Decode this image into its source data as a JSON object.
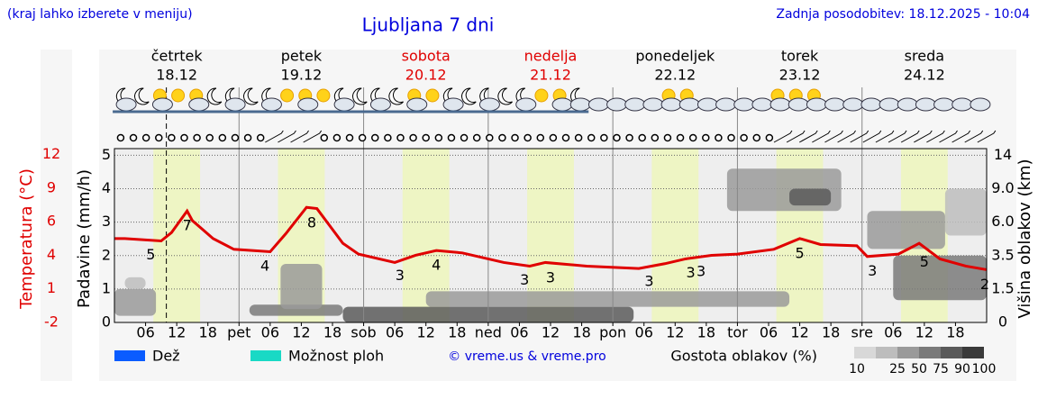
{
  "header": {
    "note": "(kraj lahko izberete v meniju)",
    "updated": "Zadnja posodobitev: 18.12.2025 - 10:04"
  },
  "chart_data": {
    "type": "meteogram",
    "title": "Ljubljana 7 dni",
    "days": [
      {
        "name": "četrtek",
        "date": "18.12",
        "weekend": false
      },
      {
        "name": "petek",
        "date": "19.12",
        "weekend": false
      },
      {
        "name": "sobota",
        "date": "20.12",
        "weekend": true
      },
      {
        "name": "nedelja",
        "date": "21.12",
        "weekend": true
      },
      {
        "name": "ponedeljek",
        "date": "22.12",
        "weekend": false
      },
      {
        "name": "torek",
        "date": "23.12",
        "weekend": false
      },
      {
        "name": "sreda",
        "date": "24.12",
        "weekend": false
      }
    ],
    "weekend_color": "#e00000",
    "daylight_hours": [
      7.5,
      16.5
    ],
    "now_hour": 10,
    "xlim": [
      0,
      168
    ],
    "xticks": [
      {
        "value": 6,
        "label": "06"
      },
      12,
      18,
      {
        "value": 24,
        "label": "pet"
      },
      {
        "value": 30,
        "label": "06"
      },
      {
        "value": 36,
        "label": "12"
      },
      {
        "value": 42,
        "label": "18"
      },
      {
        "value": 48,
        "label": "sob"
      },
      {
        "value": 54,
        "label": "06"
      },
      {
        "value": 60,
        "label": "12"
      },
      {
        "value": 66,
        "label": "18"
      },
      {
        "value": 72,
        "label": "ned"
      },
      {
        "value": 78,
        "label": "06"
      },
      {
        "value": 84,
        "label": "12"
      },
      {
        "value": 90,
        "label": "18"
      },
      {
        "value": 96,
        "label": "pon"
      },
      {
        "value": 102,
        "label": "06"
      },
      {
        "value": 108,
        "label": "12"
      },
      {
        "value": 114,
        "label": "18"
      },
      {
        "value": 120,
        "label": "tor"
      },
      {
        "value": 126,
        "label": "06"
      },
      {
        "value": 132,
        "label": "12"
      },
      {
        "value": 138,
        "label": "18"
      },
      {
        "value": 144,
        "label": "sre"
      },
      {
        "value": 150,
        "label": "06"
      },
      {
        "value": 156,
        "label": "12"
      },
      {
        "value": 162,
        "label": "18"
      }
    ],
    "ylabel": "Padavine (mm/h)",
    "ylim": [
      0,
      5.2
    ],
    "yticks": [
      0,
      1,
      2,
      3,
      4,
      5
    ],
    "temperature": {
      "label": "Temperatura (°C)",
      "color": "#e00000",
      "lim": [
        -2,
        12.5
      ],
      "ticks": [
        -2,
        {
          "value": 0.8,
          "label": "1"
        },
        {
          "value": 3.6,
          "label": "4"
        },
        {
          "value": 6.4,
          "label": "6"
        },
        {
          "value": 9.2,
          "label": "9"
        },
        12
      ],
      "x": [
        0,
        2,
        9,
        11,
        14,
        15,
        19,
        23,
        30,
        33,
        37,
        39,
        44,
        47,
        54,
        58,
        62,
        67,
        75,
        80,
        83,
        91,
        101,
        106,
        110,
        115,
        120,
        127,
        132,
        136,
        143,
        145,
        151,
        155,
        159,
        164,
        168
      ],
      "values": [
        5.0,
        5.0,
        4.8,
        5.5,
        7.3,
        6.5,
        5.0,
        4.1,
        3.9,
        5.4,
        7.6,
        7.5,
        4.6,
        3.7,
        3.0,
        3.6,
        4.0,
        3.8,
        3.0,
        2.7,
        3.0,
        2.7,
        2.5,
        2.9,
        3.3,
        3.6,
        3.7,
        4.1,
        5.0,
        4.5,
        4.4,
        3.5,
        3.7,
        4.6,
        3.3,
        2.7,
        2.4
      ],
      "labels_x": [
        7,
        14,
        29,
        38,
        55,
        62,
        79,
        84,
        103,
        111,
        113,
        132,
        146,
        156,
        168
      ],
      "labels": [
        5,
        7,
        4,
        8,
        3,
        4,
        3,
        3,
        3,
        3,
        3,
        5,
        3,
        5,
        2
      ]
    },
    "cloud_height": {
      "label": "Višina oblakov (km)",
      "ticks": [
        0,
        1.5,
        3.5,
        {
          "value": 6,
          "label": "6.0"
        },
        {
          "value": 9,
          "label": "9.0"
        },
        14
      ],
      "lim": [
        0,
        14.8
      ],
      "patches": [
        {
          "x": [
            0,
            8
          ],
          "km": [
            0.3,
            1.5
          ],
          "density": 50
        },
        {
          "x": [
            2,
            6
          ],
          "km": [
            1.5,
            2.2
          ],
          "density": 25
        },
        {
          "x": [
            26,
            44
          ],
          "km": [
            0.3,
            0.8
          ],
          "density": 75
        },
        {
          "x": [
            32,
            40
          ],
          "km": [
            0.6,
            3
          ],
          "density": 50
        },
        {
          "x": [
            44,
            100
          ],
          "km": [
            0,
            0.7
          ],
          "density": 90
        },
        {
          "x": [
            60,
            130
          ],
          "km": [
            0.7,
            1.4
          ],
          "density": 50
        },
        {
          "x": [
            118,
            140
          ],
          "km": [
            7,
            12
          ],
          "density": 50
        },
        {
          "x": [
            130,
            138
          ],
          "km": [
            7.5,
            9
          ],
          "density": 90
        },
        {
          "x": [
            145,
            160
          ],
          "km": [
            4,
            7
          ],
          "density": 50
        },
        {
          "x": [
            150,
            168
          ],
          "km": [
            1,
            3.5
          ],
          "density": 75
        },
        {
          "x": [
            160,
            168
          ],
          "km": [
            5,
            9
          ],
          "density": 25
        }
      ]
    },
    "series": [
      {
        "name": "Dež",
        "color": "#0a5cff"
      },
      {
        "name": "Možnost ploh",
        "color": "#19d9c5"
      }
    ],
    "credit": "© vreme.us & vreme.pro",
    "density_legend": {
      "title": "Gostota oblakov (%)",
      "levels": [
        10,
        25,
        50,
        75,
        90,
        100
      ],
      "colors": [
        "#d8d8d8",
        "#bdbdbd",
        "#9a9a9a",
        "#7a7a7a",
        "#5a5a5a",
        "#3a3a3a"
      ]
    }
  }
}
